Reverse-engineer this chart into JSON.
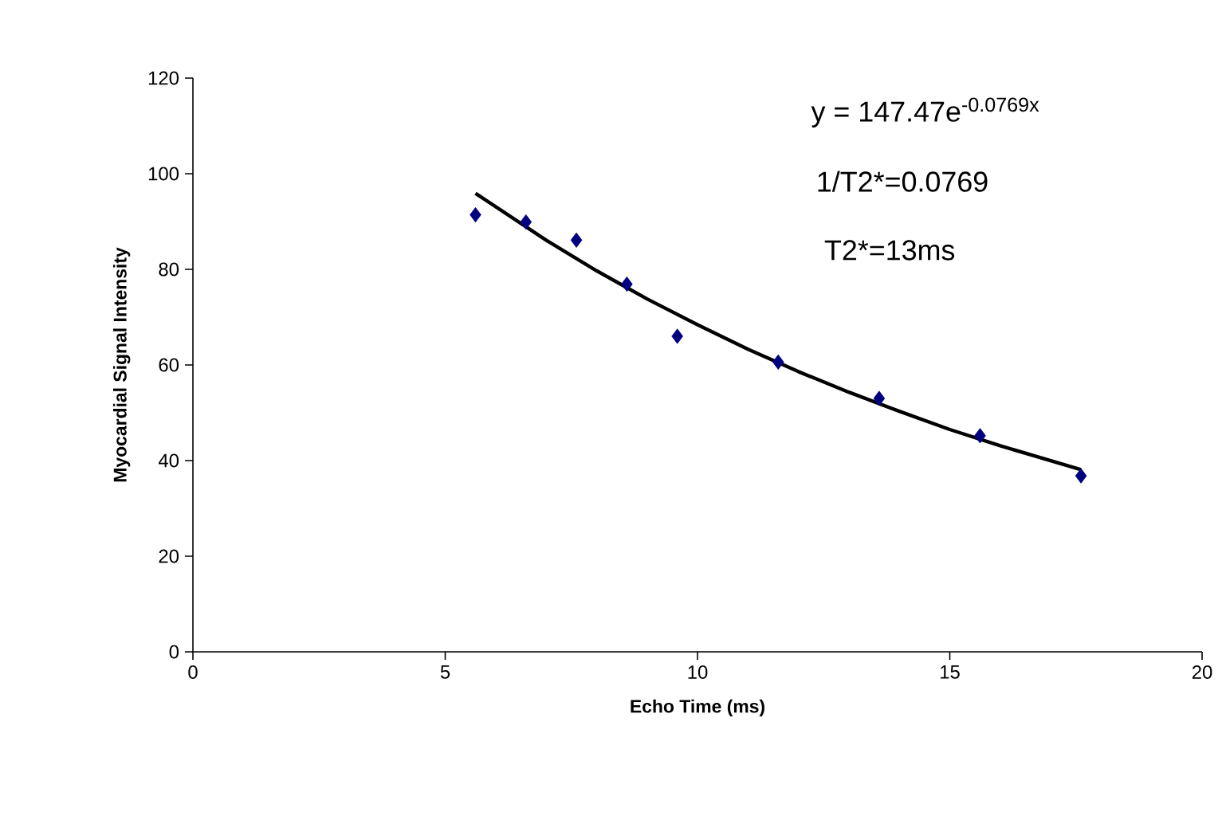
{
  "chart_data": {
    "type": "scatter",
    "xlabel": "Echo Time (ms)",
    "ylabel": "Myocardial Signal Intensity",
    "xlim": [
      0,
      20
    ],
    "xticks": [
      0,
      5,
      10,
      15,
      20
    ],
    "ylim": [
      0,
      120
    ],
    "yticks": [
      0,
      20,
      40,
      60,
      80,
      100,
      120
    ],
    "marker": "diamond",
    "annotations": [
      "y = 147.47e$^{-0.0769x}$",
      "1/T2*=0.0769",
      "T2*=13ms"
    ],
    "series": [
      {
        "color": "#000080",
        "x": [
          5.6,
          6.6,
          7.6,
          8.6,
          9.6,
          11.6,
          13.6,
          15.6,
          17.6
        ],
        "values": [
          91.4,
          89.9,
          86.1,
          76.9,
          66.0,
          60.6,
          53.0,
          45.2,
          36.8
        ]
      },
      {
        "type": "line",
        "color": "#000000",
        "marker": "none",
        "x": [
          5.6,
          7,
          8,
          9,
          10,
          11,
          12,
          13,
          14,
          15,
          16,
          17.6
        ],
        "values": [
          95.9,
          86.1,
          79.7,
          73.8,
          68.4,
          63.3,
          58.6,
          54.3,
          50.3,
          46.5,
          43.1,
          38.1
        ]
      }
    ]
  }
}
